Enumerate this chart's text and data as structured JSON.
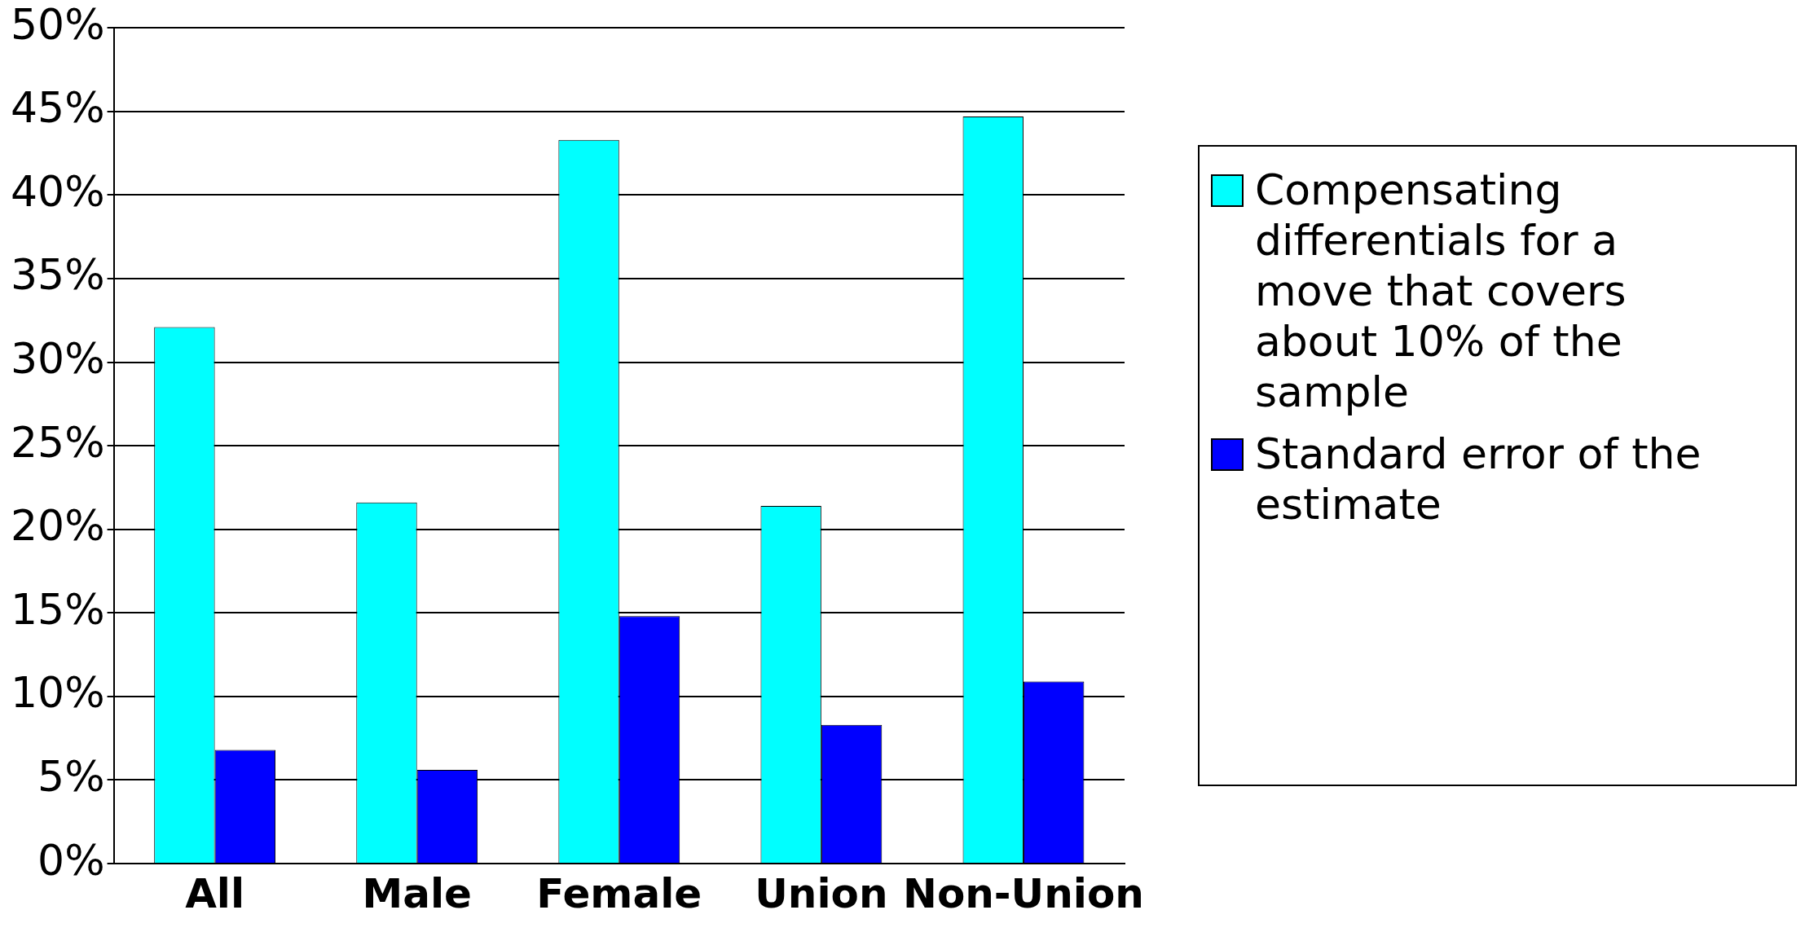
{
  "chart_data": {
    "type": "bar",
    "categories": [
      "All",
      "Male",
      "Female",
      "Union",
      "Non-Union"
    ],
    "series": [
      {
        "name": "Compensating differentials for a move that covers about 10% of the sample",
        "color": "#00ffff",
        "values": [
          32.1,
          21.6,
          43.3,
          21.4,
          44.7
        ]
      },
      {
        "name": "Standard error of the estimate",
        "color": "#0000ff",
        "values": [
          6.8,
          5.6,
          14.8,
          8.3,
          10.9
        ]
      }
    ],
    "ylim": [
      0,
      50
    ],
    "yticks": [
      {
        "value": 0,
        "label": "0%"
      },
      {
        "value": 5,
        "label": "5%"
      },
      {
        "value": 10,
        "label": "10%"
      },
      {
        "value": 15,
        "label": "15%"
      },
      {
        "value": 20,
        "label": "20%"
      },
      {
        "value": 25,
        "label": "25%"
      },
      {
        "value": 30,
        "label": "30%"
      },
      {
        "value": 35,
        "label": "35%"
      },
      {
        "value": 40,
        "label": "40%"
      },
      {
        "value": 45,
        "label": "45%"
      },
      {
        "value": 50,
        "label": "50%"
      }
    ],
    "grid": "y",
    "legend": "right"
  }
}
